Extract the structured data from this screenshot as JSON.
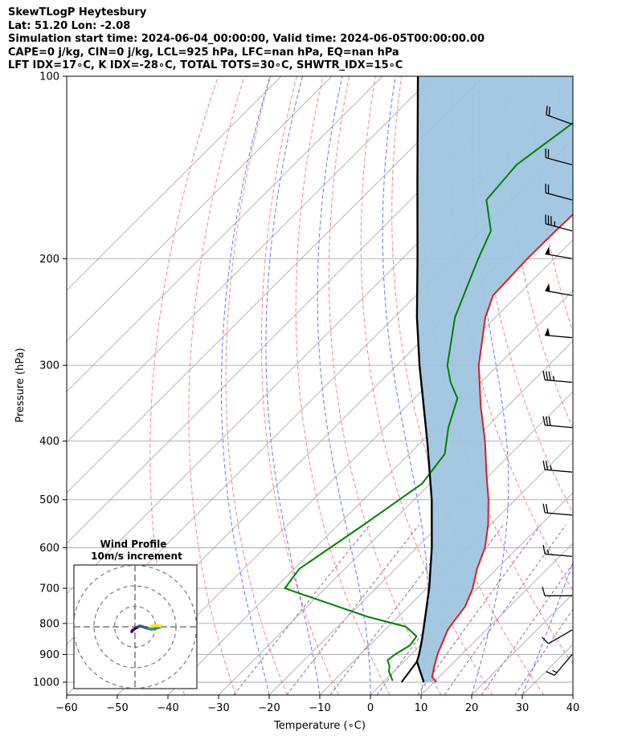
{
  "header": {
    "title_lines": [
      "SkewTLogP Heytesbury",
      "Lat: 51.20   Lon: -2.08",
      "Simulation start time: 2024-06-04_00:00:00, Valid time: 2024-06-05T00:00:00.00",
      "CAPE=0 j/kg, CIN=0 j/kg, LCL=925 hPa, LFC=nan hPa, EQ=nan hPa",
      "LFT IDX=17∘C, K IDX=-28∘C, TOTAL TOTS=30∘C, SHWTR_IDX=15∘C"
    ]
  },
  "chart_data": {
    "type": "line",
    "subtype": "skew-t log-p",
    "xlabel": "Temperature (∘C)",
    "ylabel": "Pressure (hPa)",
    "xlim": [
      -60,
      40
    ],
    "ylim": [
      1050,
      100
    ],
    "y_scale": "log",
    "x_ticks": [
      -60,
      -50,
      -40,
      -30,
      -20,
      -10,
      0,
      10,
      20,
      30,
      40
    ],
    "x_tick_labels": [
      "−60",
      "−50",
      "−40",
      "−30",
      "−20",
      "−10",
      "0",
      "10",
      "20",
      "30",
      "40"
    ],
    "y_ticks": [
      1000,
      900,
      800,
      700,
      600,
      500,
      400,
      300,
      200,
      100
    ],
    "y_tick_labels": [
      "1000",
      "900",
      "800",
      "700",
      "600",
      "500",
      "400",
      "300",
      "200",
      "100"
    ],
    "grid": true,
    "colors": {
      "temperature": "#e41a1c",
      "dewpoint": "#008000",
      "parcel": "#000000",
      "shade": "#9fc5e0",
      "dry_adiabat": "#ff5555",
      "moist_adiabat": "#3355ff",
      "mixing_ratio": "#8a3fbf",
      "isotherm": "#aaaaaa",
      "wind_profile": [
        "#440154",
        "#3b528b",
        "#21918c",
        "#5ec962",
        "#fde725"
      ]
    },
    "series": [
      {
        "key": "temperature",
        "points": [
          [
            1000,
            10.5
          ],
          [
            980,
            8.6
          ],
          [
            950,
            7.3
          ],
          [
            900,
            5.2
          ],
          [
            850,
            3.5
          ],
          [
            820,
            2.4
          ],
          [
            800,
            2.0
          ],
          [
            750,
            1.2
          ],
          [
            700,
            -0.9
          ],
          [
            650,
            -3.9
          ],
          [
            600,
            -6.5
          ],
          [
            550,
            -10.4
          ],
          [
            500,
            -15.3
          ],
          [
            450,
            -21.2
          ],
          [
            400,
            -27.6
          ],
          [
            350,
            -35.4
          ],
          [
            300,
            -43.8
          ],
          [
            250,
            -52.0
          ],
          [
            230,
            -54.8
          ],
          [
            200,
            -55.3
          ],
          [
            180,
            -55.2
          ],
          [
            160,
            -54.9
          ],
          [
            140,
            -55.1
          ],
          [
            120,
            -55.7
          ],
          [
            110,
            -56.6
          ],
          [
            100,
            -56.6
          ]
        ]
      },
      {
        "key": "dewpoint",
        "points": [
          [
            995,
            1.6
          ],
          [
            960,
            -1.0
          ],
          [
            940,
            -2.0
          ],
          [
            920,
            -3.5
          ],
          [
            900,
            -3.2
          ],
          [
            870,
            -2.0
          ],
          [
            840,
            -2.5
          ],
          [
            810,
            -6.5
          ],
          [
            780,
            -16.0
          ],
          [
            700,
            -38.0
          ],
          [
            650,
            -39.0
          ],
          [
            550,
            -35.0
          ],
          [
            470,
            -31.6
          ],
          [
            420,
            -33.0
          ],
          [
            380,
            -37.5
          ],
          [
            340,
            -41.5
          ],
          [
            320,
            -46.0
          ],
          [
            300,
            -50.0
          ],
          [
            250,
            -58.0
          ],
          [
            200,
            -65.0
          ],
          [
            180,
            -68.0
          ],
          [
            160,
            -75.0
          ],
          [
            140,
            -76.0
          ],
          [
            100,
            -70.0
          ]
        ]
      },
      {
        "key": "parcel",
        "points": [
          [
            1000,
            8.0
          ],
          [
            925,
            2.6
          ],
          [
            900,
            1.6
          ],
          [
            850,
            -0.8
          ],
          [
            800,
            -3.5
          ],
          [
            700,
            -9.5
          ],
          [
            600,
            -17.0
          ],
          [
            500,
            -26.5
          ],
          [
            400,
            -39.0
          ],
          [
            300,
            -55.5
          ],
          [
            250,
            -65.5
          ],
          [
            200,
            -77.0
          ],
          [
            150,
            -92.0
          ],
          [
            100,
            -113.0
          ]
        ]
      }
    ],
    "winds": [
      {
        "p": 100,
        "speed_kt": 20,
        "dir": 250
      },
      {
        "p": 120,
        "speed_kt": 20,
        "dir": 250
      },
      {
        "p": 140,
        "speed_kt": 20,
        "dir": 255
      },
      {
        "p": 160,
        "speed_kt": 20,
        "dir": 255
      },
      {
        "p": 180,
        "speed_kt": 35,
        "dir": 255
      },
      {
        "p": 200,
        "speed_kt": 50,
        "dir": 260
      },
      {
        "p": 230,
        "speed_kt": 50,
        "dir": 260
      },
      {
        "p": 270,
        "speed_kt": 50,
        "dir": 265
      },
      {
        "p": 320,
        "speed_kt": 35,
        "dir": 265
      },
      {
        "p": 380,
        "speed_kt": 30,
        "dir": 265
      },
      {
        "p": 450,
        "speed_kt": 25,
        "dir": 265
      },
      {
        "p": 530,
        "speed_kt": 20,
        "dir": 265
      },
      {
        "p": 620,
        "speed_kt": 15,
        "dir": 265
      },
      {
        "p": 720,
        "speed_kt": 10,
        "dir": 270
      },
      {
        "p": 820,
        "speed_kt": 10,
        "dir": 300
      },
      {
        "p": 900,
        "speed_kt": 15,
        "dir": 320
      }
    ],
    "inset": {
      "title": "Wind Profile",
      "subtitle": "10m/s increment",
      "rings_ms": [
        10,
        20,
        30
      ],
      "hodograph_uv": [
        [
          -1.6,
          -2.4
        ],
        [
          -1.2,
          -1.7
        ],
        [
          -0.3,
          -1.1
        ],
        [
          0.8,
          -0.4
        ],
        [
          1.6,
          0.0
        ],
        [
          2.3,
          0.4
        ],
        [
          3.3,
          0.2
        ],
        [
          4.8,
          -0.3
        ],
        [
          6.4,
          -0.8
        ],
        [
          8.0,
          -1.2
        ],
        [
          9.6,
          -1.0
        ],
        [
          10.8,
          -0.6
        ],
        [
          12.6,
          -0.1
        ],
        [
          12.6,
          0.3
        ],
        [
          11.6,
          0.4
        ],
        [
          9.6,
          0.3
        ],
        [
          8.0,
          0.1
        ],
        [
          8.0,
          0.4
        ],
        [
          9.6,
          0.6
        ],
        [
          11.6,
          0.7
        ],
        [
          12.4,
          0.4
        ]
      ]
    }
  }
}
